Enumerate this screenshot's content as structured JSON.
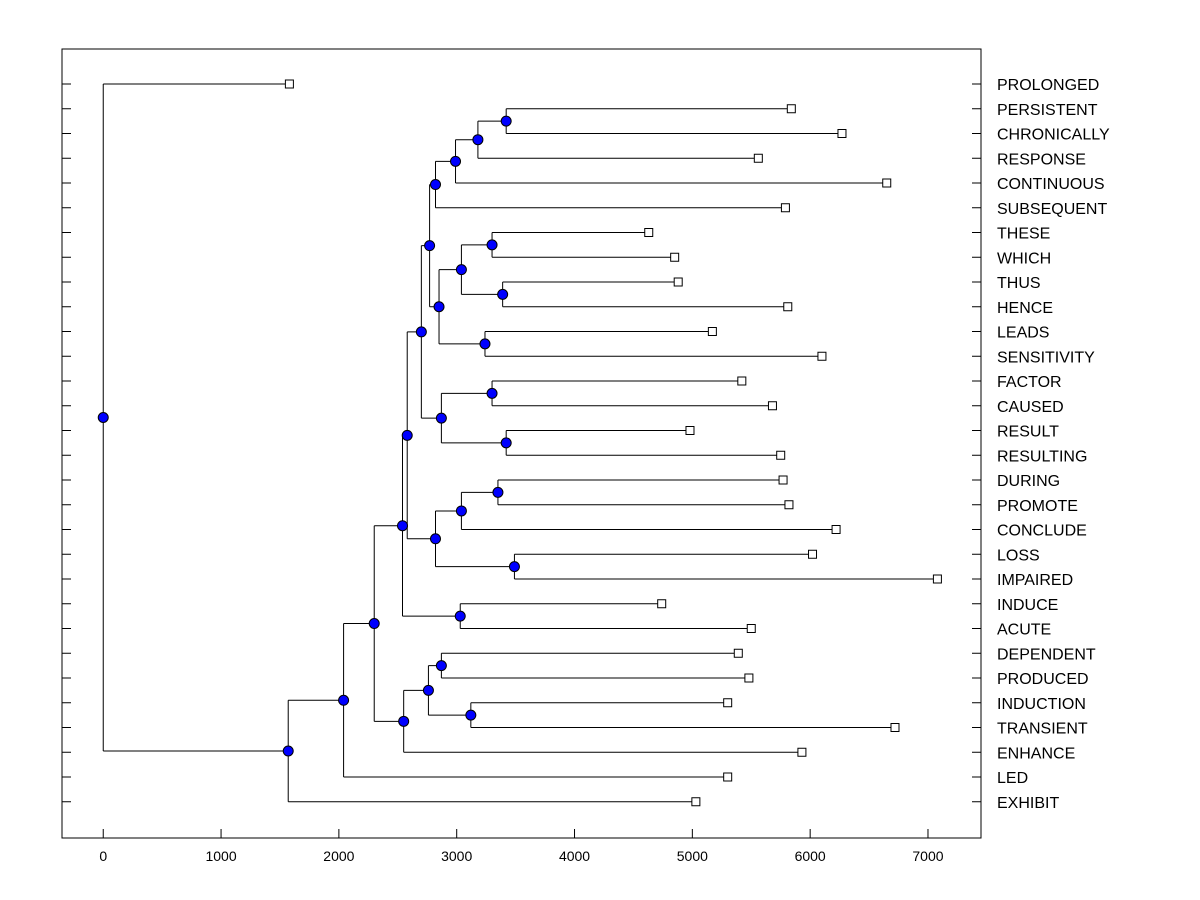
{
  "chart_data": {
    "type": "dendrogram",
    "title": "",
    "xlabel": "",
    "ylabel": "",
    "xlim": [
      -350,
      7450
    ],
    "x_ticks": [
      0,
      1000,
      2000,
      3000,
      4000,
      5000,
      6000,
      7000
    ],
    "grid": false,
    "node_color": "#0000ff",
    "leaves": [
      {
        "label": "PROLONGED",
        "x": 1580
      },
      {
        "label": "PERSISTENT",
        "x": 5840
      },
      {
        "label": "CHRONICALLY",
        "x": 6270
      },
      {
        "label": "RESPONSE",
        "x": 5560
      },
      {
        "label": "CONTINUOUS",
        "x": 6650
      },
      {
        "label": "SUBSEQUENT",
        "x": 5790
      },
      {
        "label": "THESE",
        "x": 4630
      },
      {
        "label": "WHICH",
        "x": 4850
      },
      {
        "label": "THUS",
        "x": 4880
      },
      {
        "label": "HENCE",
        "x": 5810
      },
      {
        "label": "LEADS",
        "x": 5170
      },
      {
        "label": "SENSITIVITY",
        "x": 6100
      },
      {
        "label": "FACTOR",
        "x": 5420
      },
      {
        "label": "CAUSED",
        "x": 5680
      },
      {
        "label": "RESULT",
        "x": 4980
      },
      {
        "label": "RESULTING",
        "x": 5750
      },
      {
        "label": "DURING",
        "x": 5770
      },
      {
        "label": "PROMOTE",
        "x": 5820
      },
      {
        "label": "CONCLUDE",
        "x": 6220
      },
      {
        "label": "LOSS",
        "x": 6020
      },
      {
        "label": "IMPAIRED",
        "x": 7080
      },
      {
        "label": "INDUCE",
        "x": 4740
      },
      {
        "label": "ACUTE",
        "x": 5500
      },
      {
        "label": "DEPENDENT",
        "x": 5390
      },
      {
        "label": "PRODUCED",
        "x": 5480
      },
      {
        "label": "INDUCTION",
        "x": 5300
      },
      {
        "label": "TRANSIENT",
        "x": 6720
      },
      {
        "label": "ENHANCE",
        "x": 5930
      },
      {
        "label": "LED",
        "x": 5300
      },
      {
        "label": "EXHIBIT",
        "x": 5030
      }
    ],
    "merges": [
      {
        "id": "n1",
        "x": 3420,
        "children": [
          "PERSISTENT",
          "CHRONICALLY"
        ]
      },
      {
        "id": "n2",
        "x": 3180,
        "children": [
          "n1",
          "RESPONSE"
        ]
      },
      {
        "id": "n3",
        "x": 2990,
        "children": [
          "n2",
          "CONTINUOUS"
        ]
      },
      {
        "id": "n4",
        "x": 2820,
        "children": [
          "n3",
          "SUBSEQUENT"
        ]
      },
      {
        "id": "n5",
        "x": 3300,
        "children": [
          "THESE",
          "WHICH"
        ]
      },
      {
        "id": "n6",
        "x": 3390,
        "children": [
          "THUS",
          "HENCE"
        ]
      },
      {
        "id": "n7",
        "x": 3040,
        "children": [
          "n5",
          "n6"
        ]
      },
      {
        "id": "n8",
        "x": 3240,
        "children": [
          "LEADS",
          "SENSITIVITY"
        ]
      },
      {
        "id": "n9",
        "x": 2850,
        "children": [
          "n7",
          "n8"
        ]
      },
      {
        "id": "n10",
        "x": 2770,
        "children": [
          "n4",
          "n9"
        ]
      },
      {
        "id": "n11",
        "x": 3300,
        "children": [
          "FACTOR",
          "CAUSED"
        ]
      },
      {
        "id": "n12",
        "x": 3420,
        "children": [
          "RESULT",
          "RESULTING"
        ]
      },
      {
        "id": "n13",
        "x": 2870,
        "children": [
          "n11",
          "n12"
        ]
      },
      {
        "id": "n14",
        "x": 2700,
        "children": [
          "n10",
          "n13"
        ]
      },
      {
        "id": "n15",
        "x": 3350,
        "children": [
          "DURING",
          "PROMOTE"
        ]
      },
      {
        "id": "n16",
        "x": 3040,
        "children": [
          "n15",
          "CONCLUDE"
        ]
      },
      {
        "id": "n17",
        "x": 3490,
        "children": [
          "LOSS",
          "IMPAIRED"
        ]
      },
      {
        "id": "n18",
        "x": 2820,
        "children": [
          "n16",
          "n17"
        ]
      },
      {
        "id": "n19",
        "x": 2580,
        "children": [
          "n14",
          "n18"
        ]
      },
      {
        "id": "n20",
        "x": 3030,
        "children": [
          "INDUCE",
          "ACUTE"
        ]
      },
      {
        "id": "n21",
        "x": 2540,
        "children": [
          "n19",
          "n20"
        ]
      },
      {
        "id": "n22",
        "x": 2870,
        "children": [
          "DEPENDENT",
          "PRODUCED"
        ]
      },
      {
        "id": "n23",
        "x": 3120,
        "children": [
          "INDUCTION",
          "TRANSIENT"
        ]
      },
      {
        "id": "n24",
        "x": 2760,
        "children": [
          "n22",
          "n23"
        ]
      },
      {
        "id": "n25",
        "x": 2550,
        "children": [
          "n24",
          "ENHANCE"
        ]
      },
      {
        "id": "n26",
        "x": 2300,
        "children": [
          "n21",
          "n25"
        ]
      },
      {
        "id": "n27",
        "x": 2040,
        "children": [
          "n26",
          "LED"
        ]
      },
      {
        "id": "n28",
        "x": 1570,
        "children": [
          "n27",
          "EXHIBIT"
        ]
      },
      {
        "id": "n29",
        "x": 0,
        "children": [
          "PROLONGED",
          "n28"
        ]
      }
    ]
  }
}
